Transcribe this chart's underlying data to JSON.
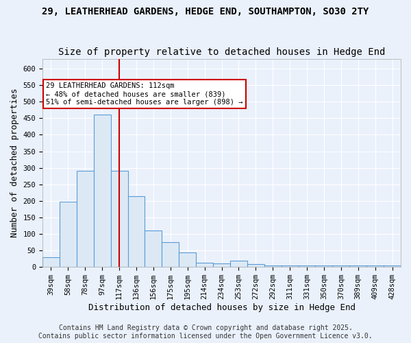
{
  "title1": "29, LEATHERHEAD GARDENS, HEDGE END, SOUTHAMPTON, SO30 2TY",
  "title2": "Size of property relative to detached houses in Hedge End",
  "xlabel": "Distribution of detached houses by size in Hedge End",
  "ylabel": "Number of detached properties",
  "bin_labels": [
    "39sqm",
    "58sqm",
    "78sqm",
    "97sqm",
    "117sqm",
    "136sqm",
    "156sqm",
    "175sqm",
    "195sqm",
    "214sqm",
    "234sqm",
    "253sqm",
    "272sqm",
    "292sqm",
    "311sqm",
    "331sqm",
    "350sqm",
    "370sqm",
    "389sqm",
    "409sqm",
    "428sqm"
  ],
  "bar_values": [
    30,
    197,
    290,
    460,
    290,
    215,
    110,
    75,
    45,
    12,
    10,
    20,
    8,
    5,
    5,
    5,
    5,
    5,
    5,
    5,
    5
  ],
  "bar_color": "#dce9f5",
  "bar_edge_color": "#5b9bd5",
  "vline_x": 4,
  "vline_color": "#cc0000",
  "annotation_text": "29 LEATHERHEAD GARDENS: 112sqm\n← 48% of detached houses are smaller (839)\n51% of semi-detached houses are larger (898) →",
  "annotation_box_color": "#ffffff",
  "annotation_text_color": "#000000",
  "annotation_border_color": "#cc0000",
  "background_color": "#eaf1fb",
  "grid_color": "#ffffff",
  "ylim": [
    0,
    630
  ],
  "yticks": [
    0,
    50,
    100,
    150,
    200,
    250,
    300,
    350,
    400,
    450,
    500,
    550,
    600
  ],
  "footer1": "Contains HM Land Registry data © Crown copyright and database right 2025.",
  "footer2": "Contains public sector information licensed under the Open Government Licence v3.0.",
  "title1_fontsize": 10,
  "title2_fontsize": 10,
  "xlabel_fontsize": 9,
  "ylabel_fontsize": 9,
  "tick_fontsize": 7.5,
  "footer_fontsize": 7
}
